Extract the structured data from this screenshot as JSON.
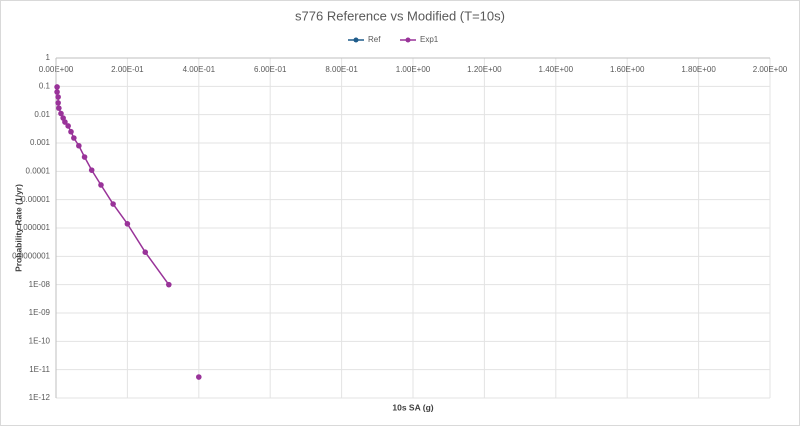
{
  "chart_data": {
    "type": "scatter",
    "title": "s776 Reference vs Modified (T=10s)",
    "x_label": "10s SA (g)",
    "y_label": "Probability Rate (1/yr)",
    "y_log": true,
    "grid": true,
    "legend": "top",
    "xlim": [
      0,
      2
    ],
    "ylim": [
      1e-12,
      1
    ],
    "xticks": [
      {
        "value": 0,
        "label": "0.00E+00"
      },
      {
        "value": 0.2,
        "label": "2.00E-01"
      },
      {
        "value": 0.4,
        "label": "4.00E-01"
      },
      {
        "value": 0.6,
        "label": "6.00E-01"
      },
      {
        "value": 0.8,
        "label": "8.00E-01"
      },
      {
        "value": 1.0,
        "label": "1.00E+00"
      },
      {
        "value": 1.2,
        "label": "1.20E+00"
      },
      {
        "value": 1.4,
        "label": "1.40E+00"
      },
      {
        "value": 1.6,
        "label": "1.60E+00"
      },
      {
        "value": 1.8,
        "label": "1.80E+00"
      },
      {
        "value": 2.0,
        "label": "2.00E+00"
      }
    ],
    "yticks": [
      1,
      0.1,
      0.01,
      0.001,
      0.0001,
      1e-05,
      1e-06,
      {
        "value": 1e-07,
        "label": "0.0000001"
      },
      {
        "value": 1e-08,
        "label": "1E-08"
      },
      {
        "value": 1e-09,
        "label": "1E-09"
      },
      {
        "value": 1e-10,
        "label": "1E-10"
      },
      {
        "value": 1e-11,
        "label": "1E-11"
      },
      {
        "value": 1e-12,
        "label": "1E-12"
      }
    ],
    "series": [
      {
        "name": "Ref",
        "color": "#1f5c8b",
        "x": [],
        "values": []
      },
      {
        "name": "Exp1",
        "color": "#993399",
        "x": [
          0.003,
          0.003,
          0.006,
          0.006,
          0.008,
          0.014,
          0.02,
          0.025,
          0.034,
          0.042,
          0.05,
          0.064,
          0.08,
          0.1,
          0.126,
          0.16,
          0.2,
          0.25,
          0.316,
          0.4,
          0.4
        ],
        "values": [
          0.095,
          0.063,
          0.042,
          0.026,
          0.017,
          0.011,
          0.0076,
          0.0055,
          0.004,
          0.0025,
          0.0015,
          0.0008,
          0.00032,
          0.00011,
          3.3e-05,
          7e-06,
          1.4e-06,
          1.4e-07,
          1e-08,
          null,
          5.5e-12
        ]
      }
    ]
  }
}
